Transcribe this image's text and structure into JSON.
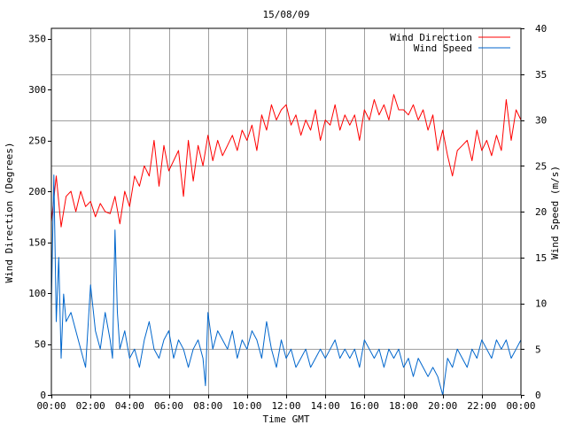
{
  "chart_data": {
    "type": "line",
    "title": "15/08/09",
    "xlabel": "Time GMT",
    "ylabel_left": "Wind Direction (Degrees)",
    "ylabel_right": "Wind Speed (m/s)",
    "x_unit": "hours",
    "xlim": [
      0,
      24
    ],
    "ylim_left": [
      0,
      360
    ],
    "ylim_right": [
      0,
      40
    ],
    "x_ticks": [
      0,
      2,
      4,
      6,
      8,
      10,
      12,
      14,
      16,
      18,
      20,
      22,
      24
    ],
    "x_tick_labels": [
      "00:00",
      "02:00",
      "04:00",
      "06:00",
      "08:00",
      "10:00",
      "12:00",
      "14:00",
      "16:00",
      "18:00",
      "20:00",
      "22:00",
      "00:00"
    ],
    "y_left_ticks": [
      0,
      50,
      100,
      150,
      200,
      250,
      300,
      350
    ],
    "y_left_tick_labels": [
      "0",
      "50",
      "100",
      "150",
      "200",
      "250",
      "300",
      "350"
    ],
    "y_right_ticks": [
      0,
      5,
      10,
      15,
      20,
      25,
      30,
      35,
      40
    ],
    "y_right_tick_labels": [
      "0",
      "5",
      "10",
      "15",
      "20",
      "25",
      "30",
      "35",
      "40"
    ],
    "grid": true,
    "legend_position": "top-right",
    "series": [
      {
        "name": "Wind Direction",
        "axis": "left",
        "color": "#ff0000",
        "x": [
          0,
          0.25,
          0.5,
          0.75,
          1,
          1.25,
          1.5,
          1.75,
          2,
          2.25,
          2.5,
          2.75,
          3,
          3.25,
          3.5,
          3.75,
          4,
          4.25,
          4.5,
          4.75,
          5,
          5.25,
          5.5,
          5.75,
          6,
          6.25,
          6.5,
          6.75,
          7,
          7.25,
          7.5,
          7.75,
          8,
          8.25,
          8.5,
          8.75,
          9,
          9.25,
          9.5,
          9.75,
          10,
          10.25,
          10.5,
          10.75,
          11,
          11.25,
          11.5,
          11.75,
          12,
          12.25,
          12.5,
          12.75,
          13,
          13.25,
          13.5,
          13.75,
          14,
          14.25,
          14.5,
          14.75,
          15,
          15.25,
          15.5,
          15.75,
          16,
          16.25,
          16.5,
          16.75,
          17,
          17.25,
          17.5,
          17.75,
          18,
          18.25,
          18.5,
          18.75,
          19,
          19.25,
          19.5,
          19.75,
          20,
          20.25,
          20.5,
          20.75,
          21,
          21.25,
          21.5,
          21.75,
          22,
          22.25,
          22.5,
          22.75,
          23,
          23.25,
          23.5,
          23.75,
          24
        ],
        "y": [
          170,
          215,
          165,
          195,
          200,
          180,
          200,
          185,
          190,
          175,
          188,
          180,
          178,
          195,
          168,
          200,
          185,
          215,
          205,
          225,
          215,
          250,
          205,
          245,
          220,
          230,
          240,
          195,
          250,
          210,
          245,
          225,
          255,
          230,
          250,
          235,
          245,
          255,
          240,
          260,
          250,
          265,
          240,
          275,
          260,
          285,
          270,
          280,
          285,
          265,
          275,
          255,
          270,
          260,
          280,
          250,
          270,
          265,
          285,
          260,
          275,
          265,
          275,
          250,
          280,
          270,
          290,
          275,
          285,
          270,
          295,
          280,
          280,
          275,
          285,
          270,
          280,
          260,
          275,
          240,
          260,
          235,
          215,
          240,
          245,
          250,
          230,
          260,
          240,
          250,
          235,
          255,
          240,
          290,
          250,
          280,
          270
        ]
      },
      {
        "name": "Wind Speed",
        "axis": "right",
        "color": "#0066cc",
        "x": [
          0,
          0.125,
          0.25,
          0.375,
          0.5,
          0.625,
          0.75,
          1,
          1.25,
          1.5,
          1.75,
          2,
          2.25,
          2.5,
          2.75,
          3,
          3.125,
          3.25,
          3.375,
          3.5,
          3.75,
          4,
          4.25,
          4.5,
          4.75,
          5,
          5.25,
          5.5,
          5.75,
          6,
          6.25,
          6.5,
          6.75,
          7,
          7.25,
          7.5,
          7.75,
          7.875,
          8,
          8.25,
          8.5,
          8.75,
          9,
          9.25,
          9.5,
          9.75,
          10,
          10.25,
          10.5,
          10.75,
          11,
          11.25,
          11.5,
          11.75,
          12,
          12.25,
          12.5,
          12.75,
          13,
          13.25,
          13.5,
          13.75,
          14,
          14.25,
          14.5,
          14.75,
          15,
          15.25,
          15.5,
          15.75,
          16,
          16.25,
          16.5,
          16.75,
          17,
          17.25,
          17.5,
          17.75,
          18,
          18.25,
          18.5,
          18.75,
          19,
          19.25,
          19.5,
          19.75,
          19.875,
          20,
          20.125,
          20.25,
          20.5,
          20.75,
          21,
          21.25,
          21.5,
          21.75,
          22,
          22.25,
          22.5,
          22.75,
          23,
          23.25,
          23.5,
          23.75,
          24
        ],
        "y": [
          10,
          24,
          8,
          15,
          4,
          11,
          8,
          9,
          7,
          5,
          3,
          12,
          7,
          5,
          9,
          6,
          4,
          18,
          9,
          5,
          7,
          4,
          5,
          3,
          6,
          8,
          5,
          4,
          6,
          7,
          4,
          6,
          5,
          3,
          5,
          6,
          4,
          1,
          9,
          5,
          7,
          6,
          5,
          7,
          4,
          6,
          5,
          7,
          6,
          4,
          8,
          5,
          3,
          6,
          4,
          5,
          3,
          4,
          5,
          3,
          4,
          5,
          4,
          5,
          6,
          4,
          5,
          4,
          5,
          3,
          6,
          5,
          4,
          5,
          3,
          5,
          4,
          5,
          3,
          4,
          2,
          4,
          3,
          2,
          3,
          2,
          1,
          0,
          2,
          4,
          3,
          5,
          4,
          3,
          5,
          4,
          6,
          5,
          4,
          6,
          5,
          6,
          4,
          5,
          6
        ]
      }
    ]
  }
}
